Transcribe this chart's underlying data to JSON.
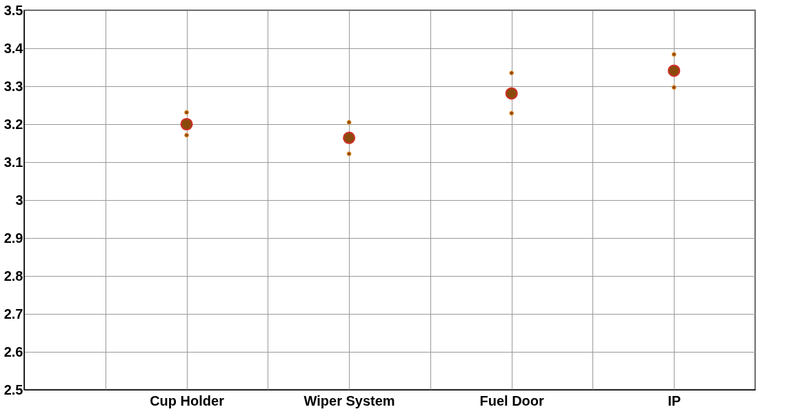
{
  "chart_data": {
    "type": "scatter",
    "categories": [
      "Cup Holder",
      "Wiper System",
      "Fuel Door",
      "IP"
    ],
    "series": [
      {
        "color": "#8b4a0c",
        "values": [
          3.2,
          3.164,
          3.281,
          3.341
        ]
      },
      {
        "color": "#e08a2a",
        "values": [
          3.231,
          3.205,
          3.335,
          3.384
        ]
      },
      {
        "color": "#e08a2a",
        "values": [
          3.171,
          3.122,
          3.229,
          3.297
        ]
      }
    ],
    "marker": "circle",
    "ylim": [
      2.5,
      3.5
    ],
    "yticks": [
      2.5,
      2.6,
      2.7,
      2.8,
      2.9,
      {
        "value": 3,
        "label": "3"
      },
      3.1,
      3.2,
      3.3,
      3.4,
      3.5
    ],
    "grid": true
  }
}
